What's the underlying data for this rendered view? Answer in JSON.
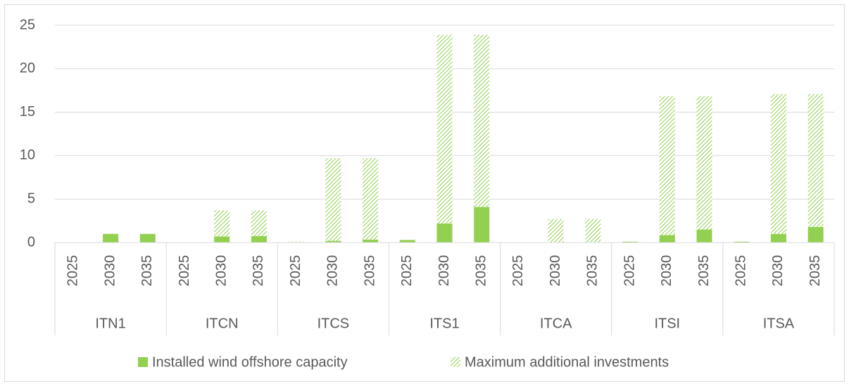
{
  "chart_data": {
    "type": "stacked_bar",
    "groups": [
      "ITN1",
      "ITCN",
      "ITCS",
      "ITS1",
      "ITCA",
      "ITSI",
      "ITSA"
    ],
    "categories": [
      "2025",
      "2030",
      "2035",
      "2025",
      "2030",
      "2035",
      "2025",
      "2030",
      "2035",
      "2025",
      "2030",
      "2035",
      "2025",
      "2030",
      "2035",
      "2025",
      "2030",
      "2035",
      "2025",
      "2030",
      "2035"
    ],
    "series": [
      {
        "name": "Installed wind offshore capacity",
        "color": "#92d050",
        "fill": "solid",
        "values": [
          0,
          1.0,
          1.0,
          0,
          0.7,
          0.75,
          0.05,
          0.2,
          0.35,
          0.3,
          2.2,
          4.1,
          0,
          0,
          0,
          0.1,
          0.85,
          1.5,
          0.1,
          1.0,
          1.8
        ]
      },
      {
        "name": "Maximum additional investments",
        "color": "#92d050",
        "fill": "hatch",
        "values": [
          0,
          0,
          0,
          0,
          3.0,
          2.95,
          0.05,
          9.5,
          9.35,
          0,
          21.7,
          19.8,
          0,
          2.7,
          2.7,
          0,
          16.0,
          15.35,
          0,
          16.1,
          15.3
        ]
      }
    ],
    "ylim": [
      0,
      25
    ],
    "yticks": [
      0,
      5,
      10,
      15,
      20,
      25
    ],
    "grid": true,
    "legend": "bottom"
  }
}
